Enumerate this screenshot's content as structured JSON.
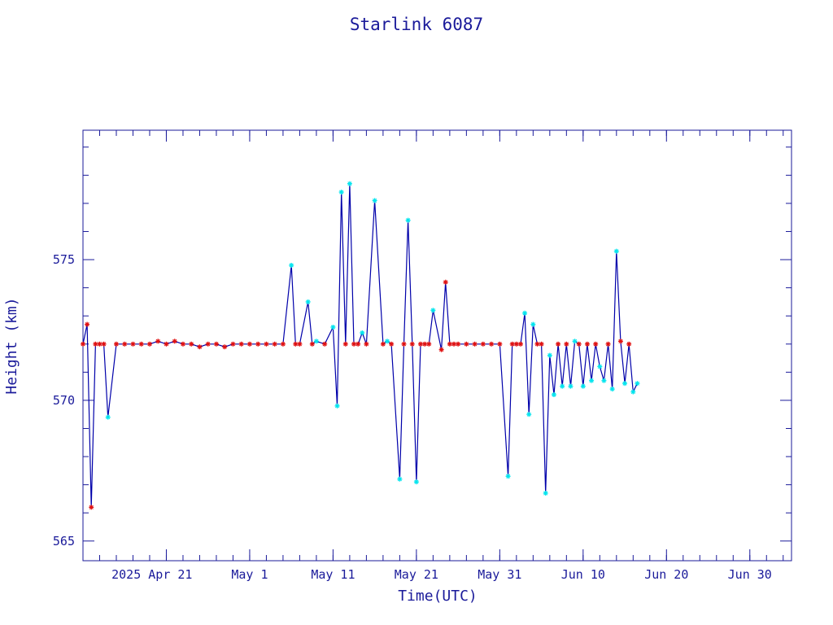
{
  "chart_data": {
    "type": "line",
    "title": "Starlink 6087",
    "xlabel": "Time(UTC)",
    "ylabel": "Height (km)",
    "x_ticks": [
      "2025 Apr 21",
      "May  1",
      "May 11",
      "May 21",
      "May 31",
      "Jun 10",
      "Jun 20",
      "Jun 30"
    ],
    "y_ticks": [
      565,
      570,
      575
    ],
    "xlim": [
      "2025-04-11",
      "2025-07-05"
    ],
    "ylim": [
      564.3,
      579.6
    ],
    "grid": false,
    "colors": {
      "line": "#0000aa",
      "frame": "#1a1a9a",
      "perigee_marker": "#00e5ee",
      "apogee_marker": "#e01010"
    },
    "series": [
      {
        "x": [
          "2025-04-11",
          "2025-04-11T12",
          "2025-04-12",
          "2025-04-12T12",
          "2025-04-13",
          "2025-04-13T12",
          "2025-04-14",
          "2025-04-15",
          "2025-04-16",
          "2025-04-17",
          "2025-04-18",
          "2025-04-19",
          "2025-04-20",
          "2025-04-21",
          "2025-04-22",
          "2025-04-23",
          "2025-04-24",
          "2025-04-25",
          "2025-04-26",
          "2025-04-27",
          "2025-04-28",
          "2025-04-29",
          "2025-04-30",
          "2025-05-01",
          "2025-05-02",
          "2025-05-03",
          "2025-05-04",
          "2025-05-05",
          "2025-05-06",
          "2025-05-06T12",
          "2025-05-07",
          "2025-05-08",
          "2025-05-08T12",
          "2025-05-09",
          "2025-05-10",
          "2025-05-11",
          "2025-05-11T12",
          "2025-05-12",
          "2025-05-12T12",
          "2025-05-13",
          "2025-05-13T12",
          "2025-05-14",
          "2025-05-14T12",
          "2025-05-15",
          "2025-05-16",
          "2025-05-17",
          "2025-05-17T12",
          "2025-05-18",
          "2025-05-19",
          "2025-05-19T12",
          "2025-05-20",
          "2025-05-20T12",
          "2025-05-21",
          "2025-05-21T12",
          "2025-05-22",
          "2025-05-22T12",
          "2025-05-23",
          "2025-05-24",
          "2025-05-24T12",
          "2025-05-25",
          "2025-05-25T12",
          "2025-05-26",
          "2025-05-27",
          "2025-05-28",
          "2025-05-29",
          "2025-05-30",
          "2025-05-31",
          "2025-06-01",
          "2025-06-01T12",
          "2025-06-02",
          "2025-06-02T12",
          "2025-06-03",
          "2025-06-03T12",
          "2025-06-04",
          "2025-06-04T12",
          "2025-06-05",
          "2025-06-05T12",
          "2025-06-06",
          "2025-06-06T12",
          "2025-06-07",
          "2025-06-07T12",
          "2025-06-08",
          "2025-06-08T12",
          "2025-06-09",
          "2025-06-09T12",
          "2025-06-10",
          "2025-06-10T12",
          "2025-06-11",
          "2025-06-11T12",
          "2025-06-12",
          "2025-06-12T12",
          "2025-06-13",
          "2025-06-13T12",
          "2025-06-14",
          "2025-06-14T12",
          "2025-06-15",
          "2025-06-15T12",
          "2025-06-16",
          "2025-06-16T12"
        ],
        "y": [
          572.0,
          572.7,
          566.2,
          572.0,
          572.0,
          572.0,
          569.4,
          572.0,
          572.0,
          572.0,
          572.0,
          572.0,
          572.1,
          572.0,
          572.1,
          572.0,
          572.0,
          571.9,
          572.0,
          572.0,
          571.9,
          572.0,
          572.0,
          572.0,
          572.0,
          572.0,
          572.0,
          572.0,
          574.8,
          572.0,
          572.0,
          573.5,
          572.0,
          572.1,
          572.0,
          572.6,
          569.8,
          577.4,
          572.0,
          577.7,
          572.0,
          572.0,
          572.4,
          572.0,
          577.1,
          572.0,
          572.1,
          572.0,
          567.2,
          572.0,
          576.4,
          572.0,
          567.1,
          572.0,
          572.0,
          572.0,
          573.2,
          571.8,
          574.2,
          572.0,
          572.0,
          572.0,
          572.0,
          572.0,
          572.0,
          572.0,
          572.0,
          567.3,
          572.0,
          572.0,
          572.0,
          573.1,
          569.5,
          572.7,
          572.0,
          572.0,
          566.7,
          571.6,
          570.2,
          572.0,
          570.5,
          572.0,
          570.5,
          572.1,
          572.0,
          570.5,
          572.0,
          570.7,
          572.0,
          571.2,
          570.7,
          572.0,
          570.4,
          575.3,
          572.1,
          570.6,
          572.0,
          570.3,
          570.6
        ],
        "markers": [
          "apogee",
          "apogee",
          "apogee",
          "apogee",
          "apogee",
          "apogee",
          "perigee",
          "apogee",
          "apogee",
          "apogee",
          "apogee",
          "apogee",
          "apogee",
          "apogee",
          "apogee",
          "apogee",
          "apogee",
          "apogee",
          "apogee",
          "apogee",
          "apogee",
          "apogee",
          "apogee",
          "apogee",
          "apogee",
          "apogee",
          "apogee",
          "apogee",
          "perigee",
          "apogee",
          "apogee",
          "perigee",
          "apogee",
          "perigee",
          "apogee",
          "perigee",
          "perigee",
          "perigee",
          "apogee",
          "perigee",
          "apogee",
          "apogee",
          "perigee",
          "apogee",
          "perigee",
          "apogee",
          "perigee",
          "apogee",
          "perigee",
          "apogee",
          "perigee",
          "apogee",
          "perigee",
          "apogee",
          "apogee",
          "apogee",
          "perigee",
          "apogee",
          "apogee",
          "apogee",
          "apogee",
          "apogee",
          "apogee",
          "apogee",
          "apogee",
          "apogee",
          "apogee",
          "perigee",
          "apogee",
          "apogee",
          "apogee",
          "perigee",
          "perigee",
          "perigee",
          "apogee",
          "apogee",
          "perigee",
          "perigee",
          "perigee",
          "apogee",
          "perigee",
          "apogee",
          "perigee",
          "perigee",
          "apogee",
          "perigee",
          "apogee",
          "perigee",
          "apogee",
          "perigee",
          "perigee",
          "apogee",
          "perigee",
          "perigee",
          "apogee",
          "perigee",
          "apogee",
          "perigee",
          "perigee"
        ]
      }
    ]
  }
}
